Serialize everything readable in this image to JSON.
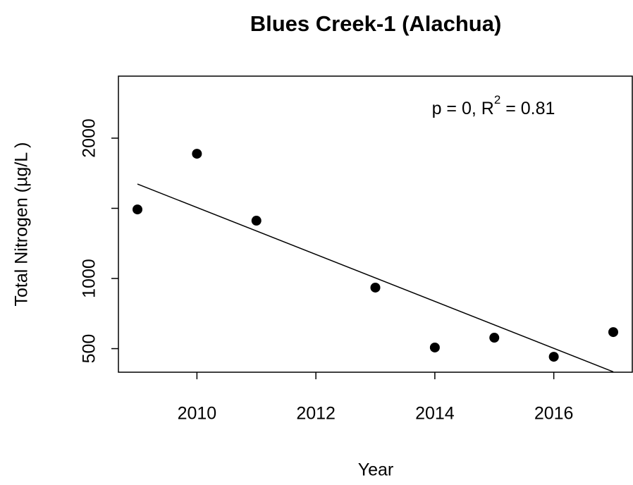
{
  "chart_data": {
    "type": "scatter",
    "title": "Blues Creek-1 (Alachua)",
    "xlabel": "Year",
    "ylabel": "Total Nitrogen (µg/L )",
    "annotation": [
      "p = 0, R",
      "2",
      " = 0.81"
    ],
    "x": [
      2009,
      2010,
      2011,
      2013,
      2014,
      2015,
      2016,
      2017
    ],
    "values": [
      1492,
      1889,
      1412,
      935,
      508,
      578,
      442,
      618
    ],
    "color": "#000000",
    "trendline": {
      "x": [
        2009,
        2017
      ],
      "values": [
        1673,
        335
      ]
    },
    "xlim": [
      2008.68,
      2017.32
    ],
    "ylim": [
      332,
      2442
    ],
    "xticks": [
      2010,
      2012,
      2014,
      2016
    ],
    "yticks": [
      500,
      1000,
      2000
    ],
    "yticks_unlabeled": [
      1500
    ]
  }
}
